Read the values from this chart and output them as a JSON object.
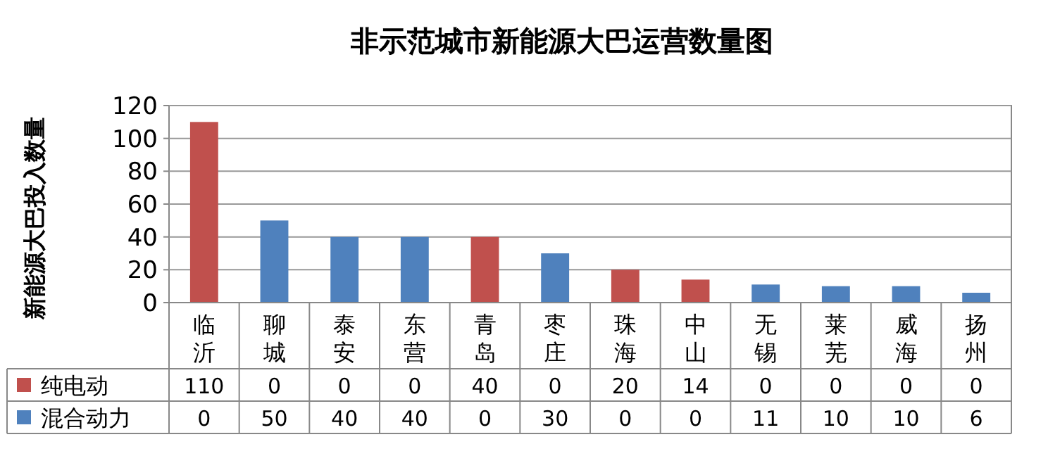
{
  "chart_data": {
    "type": "bar",
    "title": "非示范城市新能源大巴运营数量图",
    "ylabel": "新能源大巴投入数量",
    "categories": [
      "临沂",
      "聊城",
      "泰安",
      "东营",
      "青岛",
      "枣庄",
      "珠海",
      "中山",
      "无锡",
      "莱芜",
      "威海",
      "扬州"
    ],
    "stacked": true,
    "ylim": [
      0,
      120
    ],
    "yticks": [
      0,
      20,
      40,
      60,
      80,
      100,
      120
    ],
    "grid": "y",
    "legend": "bottom",
    "data_labels": true,
    "series": [
      {
        "name": "纯电动",
        "color": "#c0504d",
        "values": [
          110,
          0,
          0,
          0,
          40,
          0,
          20,
          14,
          0,
          0,
          0,
          0
        ]
      },
      {
        "name": "混合动力",
        "color": "#4f81bd",
        "values": [
          0,
          50,
          40,
          40,
          0,
          30,
          0,
          0,
          11,
          10,
          10,
          6
        ]
      }
    ]
  }
}
